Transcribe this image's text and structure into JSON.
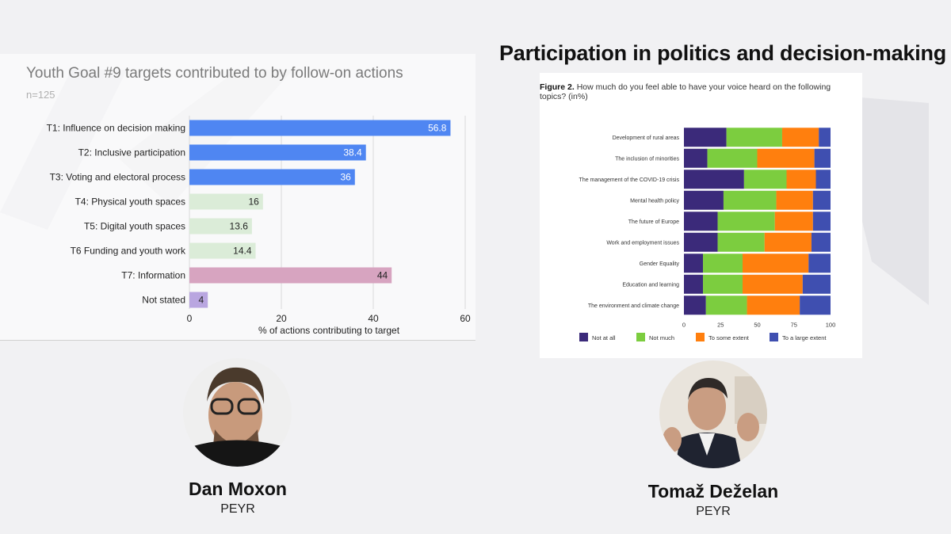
{
  "chart_data": [
    {
      "type": "bar",
      "orientation": "horizontal",
      "title": "Youth Goal #9 targets contributed to by follow-on actions",
      "subtitle": "n=125",
      "xlabel": "% of actions contributing to target",
      "ylabel": "",
      "xlim": [
        0,
        60
      ],
      "xticks": [
        0,
        20,
        40,
        60
      ],
      "grid": true,
      "categories": [
        "T1: Influence on decision making",
        "T2: Inclusive participation",
        "T3: Voting and electoral process",
        "T4: Physical youth spaces",
        "T5: Digital youth spaces",
        "T6 Funding and youth work",
        "T7: Information",
        "Not stated"
      ],
      "values": [
        56.8,
        38.4,
        36,
        16,
        13.6,
        14.4,
        44,
        4
      ],
      "value_labels": [
        "56.8",
        "38.4",
        "36",
        "16",
        "13.6",
        "14.4",
        "44",
        "4"
      ],
      "colors": [
        "#4f86f2",
        "#4f86f2",
        "#4f86f2",
        "#dbecd8",
        "#dbecd8",
        "#dbecd8",
        "#d7a4c0",
        "#b9a6e0"
      ],
      "label_colors": [
        "#ffffff",
        "#ffffff",
        "#ffffff",
        "#222222",
        "#222222",
        "#222222",
        "#222222",
        "#222222"
      ]
    },
    {
      "type": "bar",
      "orientation": "horizontal",
      "stacked": true,
      "page_title": "Participation in politics and decision-making",
      "caption_label": "Figure 2.",
      "caption": "How much do you feel able to have your voice heard on the following topics? (in%)",
      "xlim": [
        0,
        100
      ],
      "xticks": [
        "0",
        "25",
        "50",
        "75",
        "100"
      ],
      "legend_position": "bottom",
      "categories": [
        "Development of rural areas",
        "The inclusion of minorities",
        "The management of the COVID-19 crisis",
        "Mental health policy",
        "The future of Europe",
        "Work and employment issues",
        "Gender Equality",
        "Education and learning",
        "The environment and climate change"
      ],
      "series": [
        {
          "name": "Not at all",
          "color": "#3b2a7a",
          "values": [
            29,
            16,
            41,
            27,
            23,
            23,
            13,
            13,
            15
          ]
        },
        {
          "name": "Not much",
          "color": "#7ccd3f",
          "values": [
            38,
            34,
            29,
            36,
            39,
            32,
            27,
            27,
            28
          ]
        },
        {
          "name": "To some extent",
          "color": "#ff7f0e",
          "values": [
            25,
            39,
            20,
            25,
            26,
            32,
            45,
            41,
            36
          ]
        },
        {
          "name": "To a large extent",
          "color": "#3f4fb0",
          "values": [
            8,
            11,
            10,
            12,
            12,
            13,
            15,
            19,
            21
          ]
        }
      ]
    }
  ],
  "speakers": [
    {
      "name": "Dan Moxon",
      "org": "PEYR"
    },
    {
      "name": "Tomaž Deželan",
      "org": "PEYR"
    }
  ]
}
